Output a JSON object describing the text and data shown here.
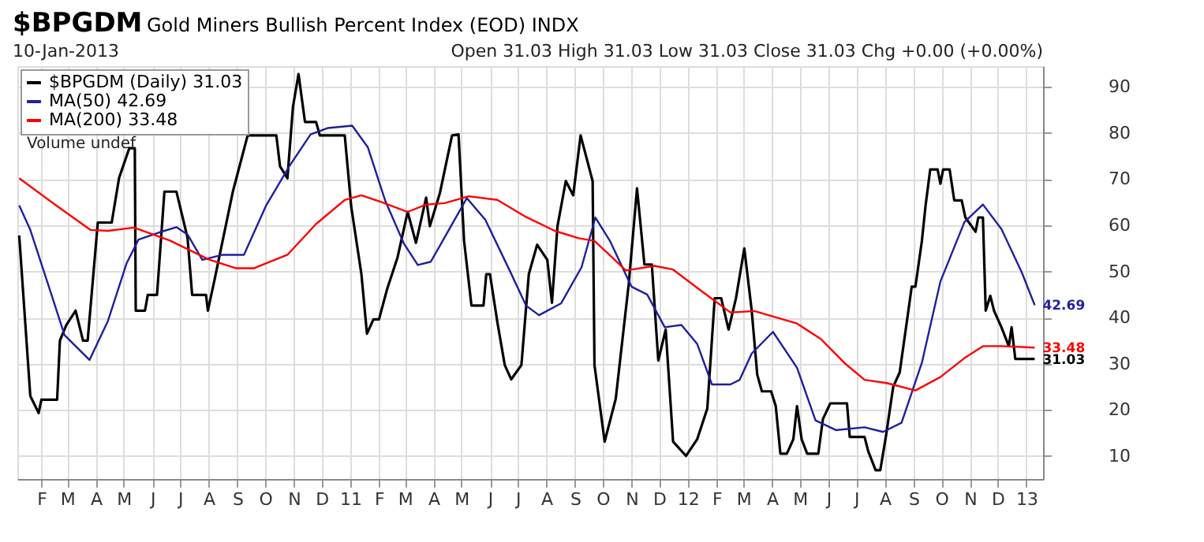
{
  "chart_data": {
    "type": "line",
    "title": "$BPGDM",
    "subtitle": "Gold Miners Bullish Percent Index (EOD) INDX",
    "annotations": [
      "10-Jan-2013",
      "Open 31.03  High 31.03  Low 31.03  Close 31.03  Chg +0.00 (+0.00%)",
      "Volume undef",
      {
        "text": "42.69",
        "x": "2013-01-10",
        "y": 42.69
      },
      {
        "text": "33.48",
        "x": "2013-01-10",
        "y": 33.48
      },
      {
        "text": "31.03",
        "x": "2013-01-10",
        "y": 31.03
      }
    ],
    "series": [
      {
        "name": "$BPGDM (Daily) 31.03",
        "color": "#000000",
        "x": [
          "2010-01-08",
          "2010-01-20",
          "2010-01-29",
          "2010-02-01",
          "2010-02-18",
          "2010-02-21",
          "2010-02-28",
          "2010-03-10",
          "2010-03-18",
          "2010-03-23",
          "2010-04-03",
          "2010-04-18",
          "2010-04-26",
          "2010-05-07",
          "2010-05-13",
          "2010-05-14",
          "2010-05-24",
          "2010-05-27",
          "2010-06-06",
          "2010-06-14",
          "2010-06-27",
          "2010-07-09",
          "2010-07-14",
          "2010-07-29",
          "2010-07-31",
          "2010-08-07",
          "2010-08-27",
          "2010-09-12",
          "2010-10-13",
          "2010-10-17",
          "2010-10-25",
          "2010-10-31",
          "2010-11-06",
          "2010-11-13",
          "2010-11-25",
          "2010-11-29",
          "2010-12-26",
          "2011-01-02",
          "2011-01-13",
          "2011-01-19",
          "2011-01-26",
          "2011-02-01",
          "2011-02-10",
          "2011-02-21",
          "2011-03-04",
          "2011-03-13",
          "2011-03-24",
          "2011-03-28",
          "2011-04-08",
          "2011-04-21",
          "2011-04-28",
          "2011-05-04",
          "2011-05-12",
          "2011-05-25",
          "2011-05-28",
          "2011-06-01",
          "2011-06-09",
          "2011-06-17",
          "2011-06-24",
          "2011-07-05",
          "2011-07-13",
          "2011-07-22",
          "2011-08-02",
          "2011-08-07",
          "2011-08-13",
          "2011-08-22",
          "2011-08-30",
          "2011-09-07",
          "2011-09-20",
          "2011-09-22",
          "2011-10-03",
          "2011-10-15",
          "2011-10-29",
          "2011-11-07",
          "2011-11-15",
          "2011-11-23",
          "2011-11-30",
          "2011-12-08",
          "2011-12-16",
          "2011-12-30",
          "2012-01-11",
          "2012-01-22",
          "2012-01-30",
          "2012-02-06",
          "2012-02-14",
          "2012-02-22",
          "2012-03-02",
          "2012-03-10",
          "2012-03-16",
          "2012-03-21",
          "2012-03-31",
          "2012-04-05",
          "2012-04-10",
          "2012-04-17",
          "2012-04-24",
          "2012-04-28",
          "2012-05-03",
          "2012-05-09",
          "2012-05-21",
          "2012-05-26",
          "2012-06-03",
          "2012-06-21",
          "2012-06-24",
          "2012-07-10",
          "2012-07-14",
          "2012-07-22",
          "2012-07-27",
          "2012-08-02",
          "2012-08-10",
          "2012-08-17",
          "2012-08-25",
          "2012-08-30",
          "2012-09-03",
          "2012-09-10",
          "2012-09-14",
          "2012-09-19",
          "2012-09-27",
          "2012-09-30",
          "2012-10-03",
          "2012-10-10",
          "2012-10-15",
          "2012-10-23",
          "2012-10-27",
          "2012-11-07",
          "2012-11-10",
          "2012-11-15",
          "2012-11-18",
          "2012-11-23",
          "2012-11-27",
          "2012-12-05",
          "2012-12-13",
          "2012-12-16",
          "2012-12-20",
          "2013-01-10"
        ],
        "values": [
          57.8,
          23,
          19.3,
          22.2,
          22.2,
          35,
          38.4,
          41.5,
          35,
          35,
          60.6,
          60.6,
          70.3,
          76.7,
          76.7,
          41.5,
          41.5,
          44.9,
          44.9,
          67.3,
          67.3,
          57.3,
          44.9,
          44.9,
          41.5,
          48,
          67.3,
          79.5,
          79.5,
          72.8,
          70.2,
          85.7,
          92.8,
          82.4,
          82.4,
          79.5,
          79.5,
          64,
          49.4,
          36.5,
          39.6,
          39.6,
          46.3,
          53,
          62.9,
          56.2,
          66,
          59.8,
          67.1,
          79.5,
          79.7,
          56.6,
          42.6,
          42.6,
          49.4,
          49.4,
          39,
          29.7,
          26.6,
          29.7,
          49.4,
          55.8,
          52.5,
          43.2,
          59.8,
          69.6,
          66.5,
          79.5,
          69.6,
          29.7,
          13.1,
          22.4,
          47.2,
          68,
          51.5,
          51.5,
          30.7,
          37.4,
          13.1,
          10,
          13.6,
          20.3,
          44.2,
          44.2,
          37.4,
          44.2,
          55,
          41.5,
          27.6,
          24,
          24,
          20.8,
          10.5,
          10.5,
          13.6,
          20.8,
          13.6,
          10.5,
          10.5,
          18,
          21.4,
          21.4,
          14.1,
          14.1,
          11,
          6.9,
          6.9,
          14.1,
          25,
          28.1,
          39.5,
          46.7,
          46.7,
          56.6,
          64.3,
          72.1,
          72.1,
          69,
          72.1,
          72.1,
          65.4,
          65.4,
          61.7,
          58.6,
          61.7,
          61.7,
          41.5,
          44.7,
          41.5,
          37.9,
          33.8,
          37.9,
          31.03,
          31.03
        ]
      },
      {
        "name": "MA(50) 42.69",
        "color": "#1f1f9e",
        "x": [
          "2010-01-08",
          "2010-01-20",
          "2010-02-11",
          "2010-02-26",
          "2010-03-25",
          "2010-04-14",
          "2010-05-04",
          "2010-05-17",
          "2010-06-09",
          "2010-06-27",
          "2010-07-09",
          "2010-07-25",
          "2010-08-16",
          "2010-09-08",
          "2010-10-02",
          "2010-10-27",
          "2010-11-19",
          "2010-12-08",
          "2011-01-03",
          "2011-01-20",
          "2011-02-08",
          "2011-02-28",
          "2011-03-15",
          "2011-03-29",
          "2011-04-15",
          "2011-05-07",
          "2011-05-27",
          "2011-06-23",
          "2011-07-10",
          "2011-07-24",
          "2011-08-17",
          "2011-09-08",
          "2011-09-23",
          "2011-10-09",
          "2011-11-01",
          "2011-11-18",
          "2011-12-07",
          "2011-12-25",
          "2012-01-11",
          "2012-01-27",
          "2012-02-16",
          "2012-02-26",
          "2012-03-10",
          "2012-04-02",
          "2012-04-28",
          "2012-05-18",
          "2012-06-09",
          "2012-07-10",
          "2012-07-30",
          "2012-08-19",
          "2012-09-10",
          "2012-09-30",
          "2012-10-26",
          "2012-11-15",
          "2012-12-05",
          "2012-12-27",
          "2013-01-10"
        ],
        "values": [
          64.3,
          59,
          45.5,
          36.2,
          30.8,
          39.3,
          51.7,
          56.9,
          58.5,
          59.6,
          58,
          52.5,
          53.6,
          53.6,
          64.3,
          72.8,
          79.7,
          81.1,
          81.6,
          76.9,
          65.2,
          56,
          51.4,
          52.1,
          58.1,
          65.9,
          61.2,
          49.9,
          42.6,
          40.5,
          43.1,
          50.9,
          61.7,
          56.5,
          46.7,
          45,
          37.9,
          38.4,
          34.3,
          25.5,
          25.5,
          26.5,
          32.2,
          36.9,
          29.1,
          17.7,
          15.6,
          16.2,
          15.2,
          17.2,
          30.2,
          47.8,
          60.7,
          64.5,
          59.2,
          49.8,
          42.69
        ]
      },
      {
        "name": "MA(200) 33.48",
        "color": "#ff0000",
        "x": [
          "2010-01-08",
          "2010-02-19",
          "2010-03-26",
          "2010-04-14",
          "2010-05-12",
          "2010-06-20",
          "2010-08-01",
          "2010-08-30",
          "2010-09-19",
          "2010-10-25",
          "2010-11-25",
          "2010-12-26",
          "2011-01-13",
          "2011-02-04",
          "2011-03-04",
          "2011-03-24",
          "2011-04-13",
          "2011-05-09",
          "2011-06-09",
          "2011-07-10",
          "2011-08-10",
          "2011-09-05",
          "2011-09-22",
          "2011-10-06",
          "2011-10-26",
          "2011-11-26",
          "2011-12-16",
          "2012-01-16",
          "2012-02-16",
          "2012-03-13",
          "2012-04-28",
          "2012-05-24",
          "2012-06-18",
          "2012-07-10",
          "2012-08-03",
          "2012-09-03",
          "2012-09-30",
          "2012-10-26",
          "2012-11-15",
          "2012-12-05",
          "2013-01-10"
        ],
        "values": [
          70.2,
          64,
          59,
          58.8,
          59.5,
          56.7,
          52.6,
          50.7,
          50.7,
          53.6,
          60.3,
          65.5,
          66.5,
          65,
          62.9,
          64.5,
          64.8,
          66.3,
          65.5,
          61.8,
          58.8,
          57.2,
          56.6,
          54,
          50.2,
          51.2,
          50.4,
          45.7,
          41.1,
          41.4,
          38.7,
          35.3,
          30.2,
          26.5,
          25.8,
          24.2,
          27.1,
          31.2,
          33.8,
          33.8,
          33.48
        ]
      }
    ],
    "xlim": [
      "2010-01-06",
      "2013-01-19"
    ],
    "xticks": [
      {
        "value": "2010-02-01",
        "label": "F"
      },
      {
        "value": "2010-03-01",
        "label": "M"
      },
      {
        "value": "2010-04-01",
        "label": "A"
      },
      {
        "value": "2010-05-01",
        "label": "M"
      },
      {
        "value": "2010-06-01",
        "label": "J"
      },
      {
        "value": "2010-07-01",
        "label": "J"
      },
      {
        "value": "2010-08-01",
        "label": "A"
      },
      {
        "value": "2010-09-01",
        "label": "S"
      },
      {
        "value": "2010-10-01",
        "label": "O"
      },
      {
        "value": "2010-11-01",
        "label": "N"
      },
      {
        "value": "2010-12-01",
        "label": "D"
      },
      {
        "value": "2011-01-01",
        "label": "11"
      },
      {
        "value": "2011-02-01",
        "label": "F"
      },
      {
        "value": "2011-03-01",
        "label": "M"
      },
      {
        "value": "2011-04-01",
        "label": "A"
      },
      {
        "value": "2011-05-01",
        "label": "M"
      },
      {
        "value": "2011-06-01",
        "label": "J"
      },
      {
        "value": "2011-07-01",
        "label": "J"
      },
      {
        "value": "2011-08-01",
        "label": "A"
      },
      {
        "value": "2011-09-01",
        "label": "S"
      },
      {
        "value": "2011-10-01",
        "label": "O"
      },
      {
        "value": "2011-11-01",
        "label": "N"
      },
      {
        "value": "2011-12-01",
        "label": "D"
      },
      {
        "value": "2012-01-01",
        "label": "12"
      },
      {
        "value": "2012-02-01",
        "label": "F"
      },
      {
        "value": "2012-03-01",
        "label": "M"
      },
      {
        "value": "2012-04-01",
        "label": "A"
      },
      {
        "value": "2012-05-01",
        "label": "M"
      },
      {
        "value": "2012-06-01",
        "label": "J"
      },
      {
        "value": "2012-07-01",
        "label": "J"
      },
      {
        "value": "2012-08-01",
        "label": "A"
      },
      {
        "value": "2012-09-01",
        "label": "S"
      },
      {
        "value": "2012-10-01",
        "label": "O"
      },
      {
        "value": "2012-11-01",
        "label": "N"
      },
      {
        "value": "2012-12-01",
        "label": "D"
      },
      {
        "value": "2013-01-01",
        "label": "13"
      }
    ],
    "ylim": [
      5,
      94.5
    ],
    "yticks": [
      10,
      20,
      30,
      40,
      50,
      60,
      70,
      80,
      90
    ],
    "grid": true,
    "line_style": "solid",
    "legend": "top left"
  }
}
